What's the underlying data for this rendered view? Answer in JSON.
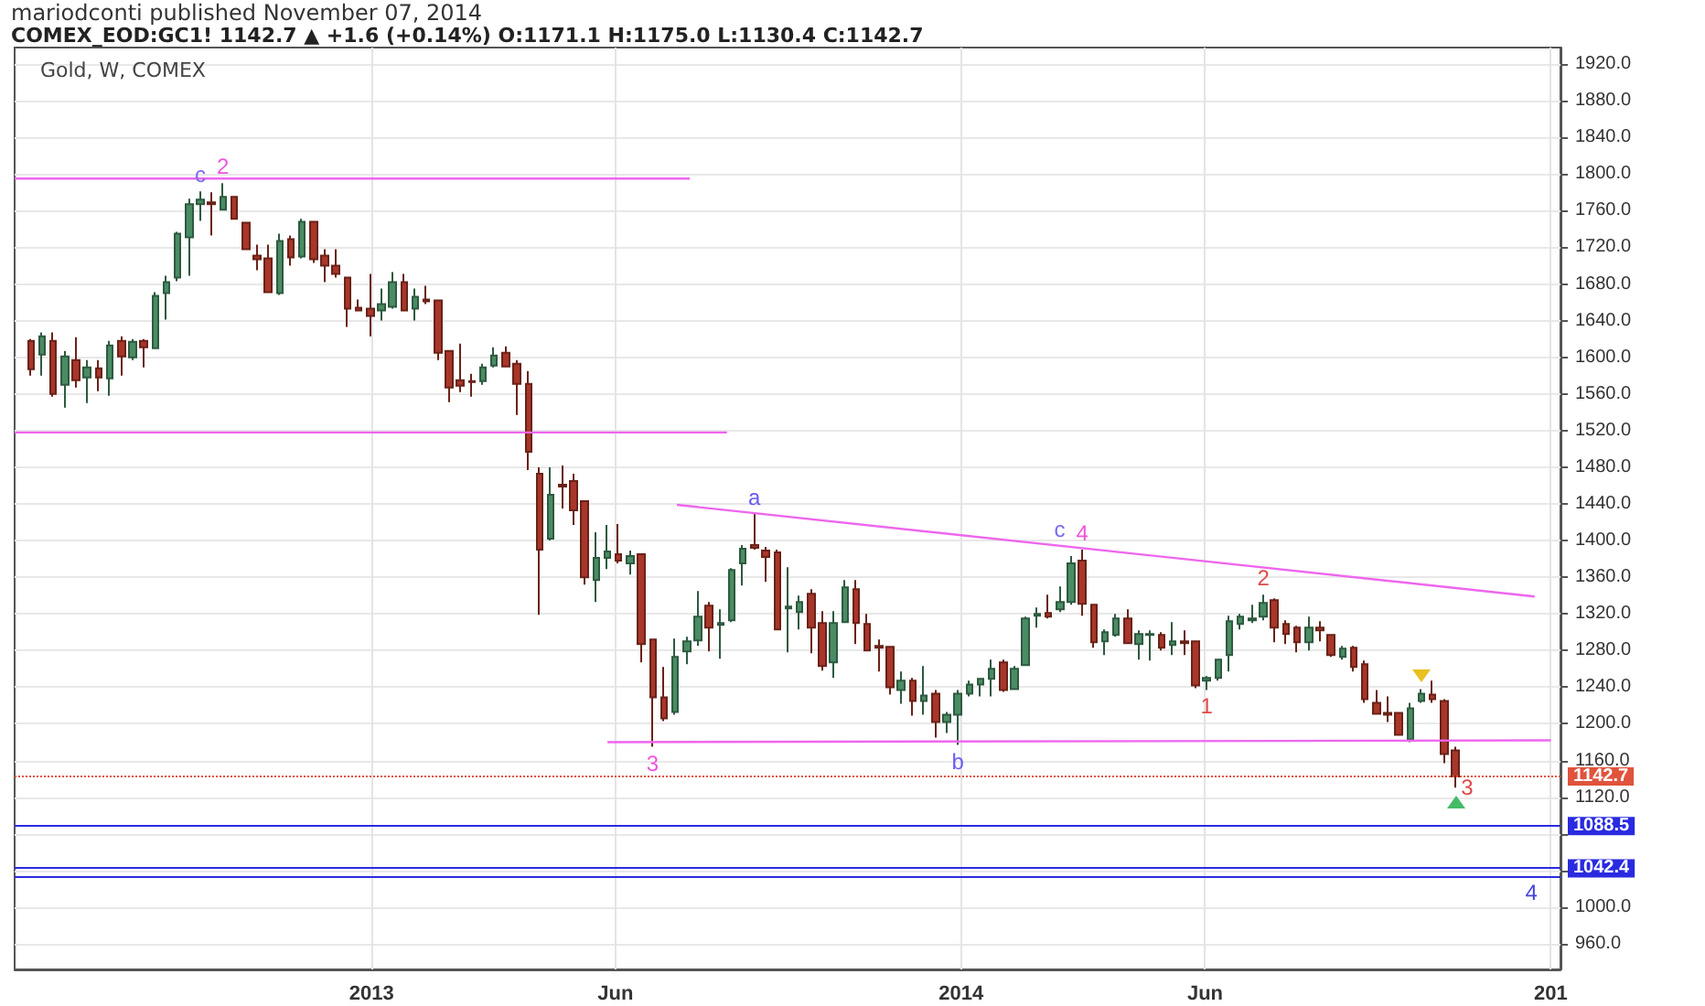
{
  "chart_data": {
    "type": "candlestick",
    "title": "COMEX_EOD:GC1! 1142.7 ▲ +1.6 (+0.14%) O:1171.1 H:1175.0 L:1130.4 C:1142.7",
    "subtitle": "Gold, W, COMEX",
    "annotations": [
      "mariodconti published November 07, 2014",
      {
        "text": "c",
        "x": "2012-09-17",
        "y": 1781
      },
      {
        "text": "2",
        "x": "2012-10-01",
        "y": 1790
      },
      {
        "text": "3",
        "x": "2013-06-24",
        "y": 1175
      },
      {
        "text": "a",
        "x": "2013-08-26",
        "y": 1429
      },
      {
        "text": "b",
        "x": "2013-12-30",
        "y": 1177
      },
      {
        "text": "c",
        "x": "2014-03-03",
        "y": 1394
      },
      {
        "text": "4",
        "x": "2014-03-17",
        "y": 1390
      },
      {
        "text": "1",
        "x": "2014-06-02",
        "y": 1237
      },
      {
        "text": "2",
        "x": "2014-07-07",
        "y": 1341
      },
      {
        "text": "3",
        "x": "2014-11-03",
        "y": 1130.4
      },
      {
        "text": "4",
        "x": "2014-12-20",
        "y": 1034
      }
    ],
    "x": [
      "2012-06-04",
      "2012-06-11",
      "2012-06-18",
      "2012-06-25",
      "2012-07-02",
      "2012-07-09",
      "2012-07-16",
      "2012-07-23",
      "2012-07-30",
      "2012-08-06",
      "2012-08-13",
      "2012-08-20",
      "2012-08-27",
      "2012-09-03",
      "2012-09-10",
      "2012-09-17",
      "2012-09-24",
      "2012-10-01",
      "2012-10-08",
      "2012-10-15",
      "2012-10-22",
      "2012-10-29",
      "2012-11-05",
      "2012-11-12",
      "2012-11-19",
      "2012-11-26",
      "2012-12-03",
      "2012-12-10",
      "2012-12-17",
      "2012-12-24",
      "2012-12-31",
      "2013-01-07",
      "2013-01-14",
      "2013-01-21",
      "2013-01-28",
      "2013-02-04",
      "2013-02-11",
      "2013-02-18",
      "2013-02-25",
      "2013-03-04",
      "2013-03-11",
      "2013-03-18",
      "2013-03-25",
      "2013-04-01",
      "2013-04-08",
      "2013-04-15",
      "2013-04-22",
      "2013-04-29",
      "2013-05-06",
      "2013-05-13",
      "2013-05-20",
      "2013-05-27",
      "2013-06-03",
      "2013-06-10",
      "2013-06-17",
      "2013-06-24",
      "2013-07-01",
      "2013-07-08",
      "2013-07-15",
      "2013-07-22",
      "2013-07-29",
      "2013-08-05",
      "2013-08-12",
      "2013-08-19",
      "2013-08-26",
      "2013-09-02",
      "2013-09-09",
      "2013-09-16",
      "2013-09-23",
      "2013-09-30",
      "2013-10-07",
      "2013-10-14",
      "2013-10-21",
      "2013-10-28",
      "2013-11-04",
      "2013-11-11",
      "2013-11-18",
      "2013-11-25",
      "2013-12-02",
      "2013-12-09",
      "2013-12-16",
      "2013-12-23",
      "2013-12-30",
      "2014-01-06",
      "2014-01-13",
      "2014-01-20",
      "2014-01-27",
      "2014-02-03",
      "2014-02-10",
      "2014-02-17",
      "2014-02-24",
      "2014-03-03",
      "2014-03-10",
      "2014-03-17",
      "2014-03-24",
      "2014-03-31",
      "2014-04-07",
      "2014-04-14",
      "2014-04-21",
      "2014-04-28",
      "2014-05-05",
      "2014-05-12",
      "2014-05-19",
      "2014-05-26",
      "2014-06-02",
      "2014-06-09",
      "2014-06-16",
      "2014-06-23",
      "2014-06-30",
      "2014-07-07",
      "2014-07-14",
      "2014-07-21",
      "2014-07-28",
      "2014-08-04",
      "2014-08-11",
      "2014-08-18",
      "2014-08-25",
      "2014-09-01",
      "2014-09-08",
      "2014-09-15",
      "2014-09-22",
      "2014-09-29",
      "2014-10-06",
      "2014-10-13",
      "2014-10-20",
      "2014-10-27",
      "2014-11-03"
    ],
    "ohlc": [
      [
        1618,
        1620,
        1580,
        1587
      ],
      [
        1603,
        1627,
        1580,
        1623
      ],
      [
        1618,
        1627,
        1557,
        1560
      ],
      [
        1570,
        1607,
        1545,
        1601
      ],
      [
        1597,
        1622,
        1567,
        1575
      ],
      [
        1578,
        1597,
        1550,
        1589
      ],
      [
        1588,
        1597,
        1563,
        1578
      ],
      [
        1577,
        1618,
        1558,
        1613
      ],
      [
        1618,
        1623,
        1580,
        1601
      ],
      [
        1600,
        1620,
        1597,
        1617
      ],
      [
        1618,
        1620,
        1589,
        1611
      ],
      [
        1610,
        1671,
        1609,
        1667
      ],
      [
        1670,
        1689,
        1641,
        1682
      ],
      [
        1687,
        1737,
        1683,
        1735
      ],
      [
        1731,
        1773,
        1689,
        1767
      ],
      [
        1767,
        1781,
        1749,
        1772
      ],
      [
        1769,
        1780,
        1733,
        1767
      ],
      [
        1761,
        1790,
        1760,
        1775
      ],
      [
        1775,
        1775,
        1750,
        1751
      ],
      [
        1747,
        1747,
        1717,
        1718
      ],
      [
        1711,
        1723,
        1695,
        1707
      ],
      [
        1708,
        1723,
        1670,
        1671
      ],
      [
        1670,
        1735,
        1668,
        1727
      ],
      [
        1729,
        1733,
        1700,
        1709
      ],
      [
        1710,
        1751,
        1708,
        1748
      ],
      [
        1748,
        1748,
        1703,
        1707
      ],
      [
        1711,
        1718,
        1682,
        1700
      ],
      [
        1700,
        1718,
        1687,
        1691
      ],
      [
        1687,
        1687,
        1633,
        1653
      ],
      [
        1654,
        1663,
        1650,
        1651
      ],
      [
        1653,
        1691,
        1623,
        1645
      ],
      [
        1651,
        1675,
        1640,
        1658
      ],
      [
        1655,
        1693,
        1653,
        1682
      ],
      [
        1682,
        1691,
        1650,
        1651
      ],
      [
        1653,
        1675,
        1640,
        1666
      ],
      [
        1663,
        1678,
        1658,
        1661
      ],
      [
        1662,
        1663,
        1597,
        1605
      ],
      [
        1607,
        1607,
        1551,
        1567
      ],
      [
        1575,
        1615,
        1562,
        1569
      ],
      [
        1574,
        1582,
        1557,
        1573
      ],
      [
        1574,
        1593,
        1570,
        1589
      ],
      [
        1591,
        1611,
        1589,
        1602
      ],
      [
        1605,
        1612,
        1589,
        1590
      ],
      [
        1593,
        1597,
        1537,
        1571
      ],
      [
        1571,
        1585,
        1477,
        1497
      ],
      [
        1473,
        1480,
        1319,
        1390
      ],
      [
        1402,
        1480,
        1400,
        1450
      ],
      [
        1461,
        1482,
        1435,
        1459
      ],
      [
        1465,
        1473,
        1417,
        1433
      ],
      [
        1443,
        1443,
        1352,
        1360
      ],
      [
        1357,
        1409,
        1333,
        1381
      ],
      [
        1381,
        1417,
        1369,
        1388
      ],
      [
        1385,
        1418,
        1375,
        1378
      ],
      [
        1375,
        1389,
        1363,
        1383
      ],
      [
        1385,
        1385,
        1267,
        1287
      ],
      [
        1292,
        1292,
        1175,
        1229
      ],
      [
        1229,
        1262,
        1203,
        1206
      ],
      [
        1213,
        1293,
        1210,
        1273
      ],
      [
        1279,
        1295,
        1265,
        1290
      ],
      [
        1291,
        1345,
        1285,
        1317
      ],
      [
        1329,
        1333,
        1279,
        1305
      ],
      [
        1308,
        1325,
        1271,
        1310
      ],
      [
        1313,
        1370,
        1311,
        1368
      ],
      [
        1375,
        1395,
        1351,
        1391
      ],
      [
        1395,
        1429,
        1390,
        1392
      ],
      [
        1389,
        1393,
        1355,
        1382
      ],
      [
        1387,
        1390,
        1302,
        1303
      ],
      [
        1326,
        1371,
        1278,
        1328
      ],
      [
        1322,
        1340,
        1303,
        1333
      ],
      [
        1342,
        1347,
        1277,
        1305
      ],
      [
        1310,
        1323,
        1258,
        1263
      ],
      [
        1267,
        1323,
        1250,
        1310
      ],
      [
        1311,
        1357,
        1310,
        1349
      ],
      [
        1347,
        1357,
        1287,
        1310
      ],
      [
        1309,
        1320,
        1279,
        1280
      ],
      [
        1285,
        1292,
        1257,
        1283
      ],
      [
        1284,
        1284,
        1232,
        1240
      ],
      [
        1237,
        1257,
        1222,
        1247
      ],
      [
        1247,
        1250,
        1209,
        1225
      ],
      [
        1225,
        1263,
        1210,
        1231
      ],
      [
        1233,
        1237,
        1185,
        1202
      ],
      [
        1202,
        1213,
        1190,
        1210
      ],
      [
        1210,
        1237,
        1177,
        1233
      ],
      [
        1233,
        1247,
        1230,
        1243
      ],
      [
        1243,
        1250,
        1230,
        1249
      ],
      [
        1249,
        1270,
        1230,
        1260
      ],
      [
        1267,
        1270,
        1235,
        1237
      ],
      [
        1238,
        1263,
        1237,
        1260
      ],
      [
        1264,
        1317,
        1263,
        1315
      ],
      [
        1318,
        1327,
        1305,
        1320
      ],
      [
        1321,
        1341,
        1315,
        1317
      ],
      [
        1325,
        1350,
        1322,
        1333
      ],
      [
        1333,
        1383,
        1330,
        1375
      ],
      [
        1378,
        1390,
        1318,
        1331
      ],
      [
        1330,
        1331,
        1283,
        1289
      ],
      [
        1290,
        1303,
        1275,
        1300
      ],
      [
        1297,
        1320,
        1295,
        1315
      ],
      [
        1315,
        1325,
        1287,
        1288
      ],
      [
        1287,
        1302,
        1270,
        1298
      ],
      [
        1297,
        1302,
        1269,
        1298
      ],
      [
        1297,
        1300,
        1280,
        1283
      ],
      [
        1286,
        1311,
        1275,
        1290
      ],
      [
        1290,
        1302,
        1275,
        1288
      ],
      [
        1290,
        1290,
        1239,
        1242
      ],
      [
        1247,
        1252,
        1237,
        1250
      ],
      [
        1250,
        1271,
        1247,
        1270
      ],
      [
        1275,
        1318,
        1257,
        1312
      ],
      [
        1309,
        1320,
        1303,
        1317
      ],
      [
        1313,
        1330,
        1310,
        1315
      ],
      [
        1317,
        1341,
        1313,
        1332
      ],
      [
        1335,
        1337,
        1289,
        1305
      ],
      [
        1309,
        1313,
        1287,
        1298
      ],
      [
        1305,
        1307,
        1278,
        1289
      ],
      [
        1289,
        1317,
        1280,
        1305
      ],
      [
        1305,
        1312,
        1290,
        1302
      ],
      [
        1297,
        1298,
        1273,
        1275
      ],
      [
        1273,
        1285,
        1270,
        1282
      ],
      [
        1283,
        1285,
        1257,
        1262
      ],
      [
        1265,
        1269,
        1223,
        1227
      ],
      [
        1223,
        1237,
        1210,
        1211
      ],
      [
        1212,
        1230,
        1202,
        1210
      ],
      [
        1212,
        1213,
        1187,
        1188
      ],
      [
        1183,
        1223,
        1180,
        1217
      ],
      [
        1225,
        1238,
        1223,
        1233
      ],
      [
        1232,
        1247,
        1223,
        1227
      ],
      [
        1225,
        1227,
        1157,
        1167
      ],
      [
        1171.1,
        1175.0,
        1130.4,
        1142.7
      ]
    ],
    "series": [
      {
        "type": "line",
        "color": "#ee66ee",
        "x": [
          "2012-05-25",
          "2013-07-17"
        ],
        "values": [
          1795,
          1795
        ]
      },
      {
        "type": "line",
        "color": "#ee66ee",
        "x": [
          "2012-05-25",
          "2013-08-09"
        ],
        "values": [
          1518,
          1518
        ]
      },
      {
        "type": "line",
        "color": "#ee66ee",
        "x": [
          "2013-05-27",
          "2015-01-01"
        ],
        "values": [
          1180,
          1182
        ]
      },
      {
        "type": "line",
        "color": "#ee66ee",
        "x": [
          "2013-07-09",
          "2014-12-22"
        ],
        "values": [
          1439,
          1339
        ]
      }
    ],
    "ref_lines": [
      {
        "axis": "y",
        "value": 1142.7,
        "label": "1142.7",
        "color": "#e0533c",
        "line_style": "dotted"
      },
      {
        "axis": "y",
        "value": 1088.5,
        "label": "1088.5",
        "color": "#2a2ae0"
      },
      {
        "axis": "y",
        "value": 1042.4,
        "label": "1042.4",
        "color": "#2a2ae0"
      },
      {
        "axis": "y",
        "value": 1034,
        "color": "#2a2ae0"
      }
    ],
    "xlim": [
      "2012-05-25",
      "2015-01-07"
    ],
    "ylim": [
      932,
      1938
    ],
    "xticks": [
      {
        "value": "2013-01-01",
        "label": "2013"
      },
      {
        "value": "2013-06-01",
        "label": "Jun"
      },
      {
        "value": "2014-01-01",
        "label": "2014"
      },
      {
        "value": "2014-06-01",
        "label": "Jun"
      },
      {
        "value": "2015-01-01",
        "label": "201"
      }
    ],
    "yticks": [
      {
        "value": 960,
        "label": "960.0"
      },
      {
        "value": 1000,
        "label": "1000.0"
      },
      {
        "value": 1040,
        "label": null
      },
      {
        "value": 1080,
        "label": null
      },
      {
        "value": 1120,
        "label": "1120.0"
      },
      {
        "value": 1160,
        "label": "1160.0"
      },
      {
        "value": 1200,
        "label": "1200.0"
      },
      {
        "value": 1240,
        "label": "1240.0"
      },
      {
        "value": 1280,
        "label": "1280.0"
      },
      {
        "value": 1320,
        "label": "1320.0"
      },
      {
        "value": 1360,
        "label": "1360.0"
      },
      {
        "value": 1400,
        "label": "1400.0"
      },
      {
        "value": 1440,
        "label": "1440.0"
      },
      {
        "value": 1480,
        "label": "1480.0"
      },
      {
        "value": 1520,
        "label": "1520.0"
      },
      {
        "value": 1560,
        "label": "1560.0"
      },
      {
        "value": 1600,
        "label": "1600.0"
      },
      {
        "value": 1640,
        "label": "1640.0"
      },
      {
        "value": 1680,
        "label": "1680.0"
      },
      {
        "value": 1720,
        "label": "1720.0"
      },
      {
        "value": 1760,
        "label": "1760.0"
      },
      {
        "value": 1800,
        "label": "1800.0"
      },
      {
        "value": 1840,
        "label": "1840.0"
      },
      {
        "value": 1880,
        "label": "1880.0"
      },
      {
        "value": 1920,
        "label": "1920.0"
      }
    ],
    "grid": true
  }
}
